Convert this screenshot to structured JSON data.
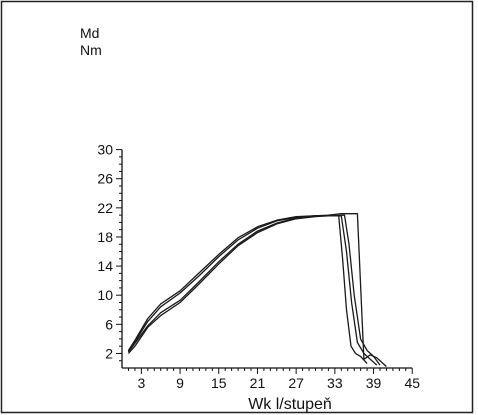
{
  "chart_data": {
    "type": "line",
    "title": "",
    "ylabel_line1": "Md",
    "ylabel_line2": "Nm",
    "xlabel": "Wk l/stupeň",
    "xlim": [
      0,
      45
    ],
    "ylim": [
      0,
      30
    ],
    "x_ticks": [
      3,
      9,
      15,
      21,
      27,
      33,
      39,
      45
    ],
    "y_ticks": [
      2,
      6,
      10,
      14,
      18,
      22,
      26,
      30
    ],
    "grid": false,
    "legend": "none",
    "line_color": "#1a1a1a",
    "series": [
      {
        "x": [
          1,
          2,
          4,
          6,
          9,
          12,
          15,
          18,
          21,
          24,
          27,
          30,
          32,
          33.6,
          34.2,
          34.8,
          35.5,
          36.2,
          37.0,
          38.0
        ],
        "y": [
          2.2,
          3.4,
          5.8,
          7.6,
          9.3,
          11.9,
          14.6,
          17.0,
          18.8,
          19.9,
          20.6,
          20.9,
          20.9,
          20.9,
          15.0,
          8.0,
          3.0,
          2.0,
          1.6,
          0.6
        ]
      },
      {
        "x": [
          1,
          2,
          4,
          6,
          9,
          12,
          15,
          18,
          21,
          24,
          27,
          30,
          32,
          34.0,
          34.8,
          35.6,
          36.5,
          37.5,
          38.5,
          39.5
        ],
        "y": [
          2.0,
          3.0,
          5.6,
          7.2,
          9.0,
          11.6,
          14.3,
          16.8,
          18.6,
          19.8,
          20.5,
          20.8,
          20.9,
          20.9,
          16.0,
          9.0,
          3.5,
          2.0,
          1.2,
          0.4
        ]
      },
      {
        "x": [
          1,
          2,
          4,
          6,
          9,
          12,
          15,
          18,
          21,
          24,
          27,
          30,
          32,
          34.5,
          35.2,
          36.0,
          37.0,
          38.0,
          39.0,
          40.0
        ],
        "y": [
          2.3,
          3.6,
          6.4,
          8.4,
          10.3,
          12.7,
          15.3,
          17.6,
          19.2,
          20.2,
          20.7,
          20.9,
          20.9,
          21.0,
          17.0,
          10.0,
          4.0,
          2.4,
          1.6,
          0.4
        ]
      },
      {
        "x": [
          1,
          2,
          4,
          6,
          9,
          12,
          15,
          18,
          21,
          24,
          27,
          30,
          32,
          33.0,
          34.0,
          35.0,
          36.5,
          37.5,
          38.5,
          39.5,
          40.5,
          41.0
        ],
        "y": [
          2.4,
          3.8,
          6.8,
          8.8,
          10.6,
          13.1,
          15.6,
          17.9,
          19.4,
          20.3,
          20.8,
          20.9,
          21.0,
          21.1,
          21.2,
          21.2,
          21.2,
          1.2,
          1.8,
          1.4,
          0.6,
          0.2
        ]
      }
    ]
  }
}
